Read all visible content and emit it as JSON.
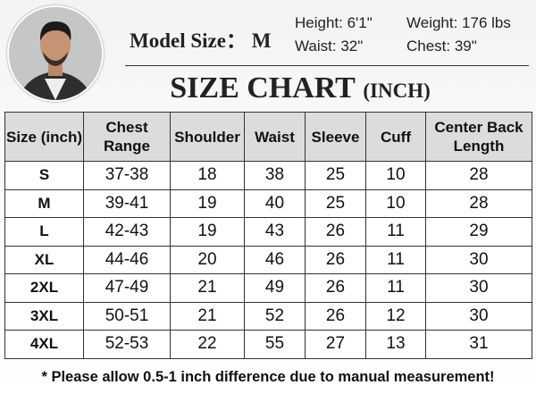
{
  "header": {
    "model_size_label": "Model Size：",
    "model_size": "M",
    "stats": [
      "Height: 6'1\"",
      "Weight: 176 lbs",
      "Waist: 32\"",
      "Chest: 39\""
    ],
    "title": "SIZE CHART",
    "unit": "(INCH)"
  },
  "table": {
    "columns": [
      "Size (inch)",
      "Chest Range",
      "Shoulder",
      "Waist",
      "Sleeve",
      "Cuff",
      "Center Back Length"
    ],
    "rows": [
      [
        "S",
        "37-38",
        "18",
        "38",
        "25",
        "10",
        "28"
      ],
      [
        "M",
        "39-41",
        "19",
        "40",
        "25",
        "10",
        "28"
      ],
      [
        "L",
        "42-43",
        "19",
        "43",
        "26",
        "11",
        "29"
      ],
      [
        "XL",
        "44-46",
        "20",
        "46",
        "26",
        "11",
        "30"
      ],
      [
        "2XL",
        "47-49",
        "21",
        "49",
        "26",
        "11",
        "30"
      ],
      [
        "3XL",
        "50-51",
        "21",
        "52",
        "26",
        "12",
        "30"
      ],
      [
        "4XL",
        "52-53",
        "22",
        "55",
        "27",
        "13",
        "31"
      ]
    ]
  },
  "footer": {
    "note": "* Please allow 0.5-1 inch difference due to manual measurement!"
  }
}
